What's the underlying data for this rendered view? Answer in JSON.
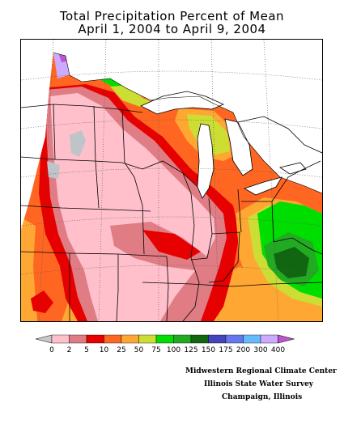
{
  "title": {
    "line1": "Total Precipitation Percent of Mean",
    "line2": "April 1, 2004 to April 9, 2004"
  },
  "legend": {
    "labels": [
      "0",
      "2",
      "5",
      "10",
      "25",
      "50",
      "75",
      "100",
      "125",
      "150",
      "175",
      "200",
      "300",
      "400"
    ],
    "colors": [
      "#ffc0cb",
      "#e07c84",
      "#e60000",
      "#ff6622",
      "#ffa733",
      "#ccdd33",
      "#00dd00",
      "#22aa22",
      "#116611",
      "#4444bb",
      "#6677ee",
      "#66bbff",
      "#ccaaff",
      "#bb55cc"
    ],
    "left_arrow_color": "#c8c8c8",
    "right_arrow_color": "#bb55cc"
  },
  "colors": {
    "no_data": "#bfc4c8",
    "pink": "#ffc0cb",
    "rose": "#e07c84",
    "red": "#e60000",
    "orange": "#ff6622",
    "amber": "#ffa733",
    "yellow_green": "#ccdd33",
    "green": "#00dd00",
    "mid_green": "#22aa22",
    "dark_green": "#116611",
    "lavender": "#ccaaff",
    "violet": "#bb55cc",
    "blue": "#4444bb"
  },
  "credits": {
    "line1": "Midwestern Regional Climate Center",
    "line2": "Illinois State Water Survey",
    "line3": "Champaign, Illinois"
  }
}
